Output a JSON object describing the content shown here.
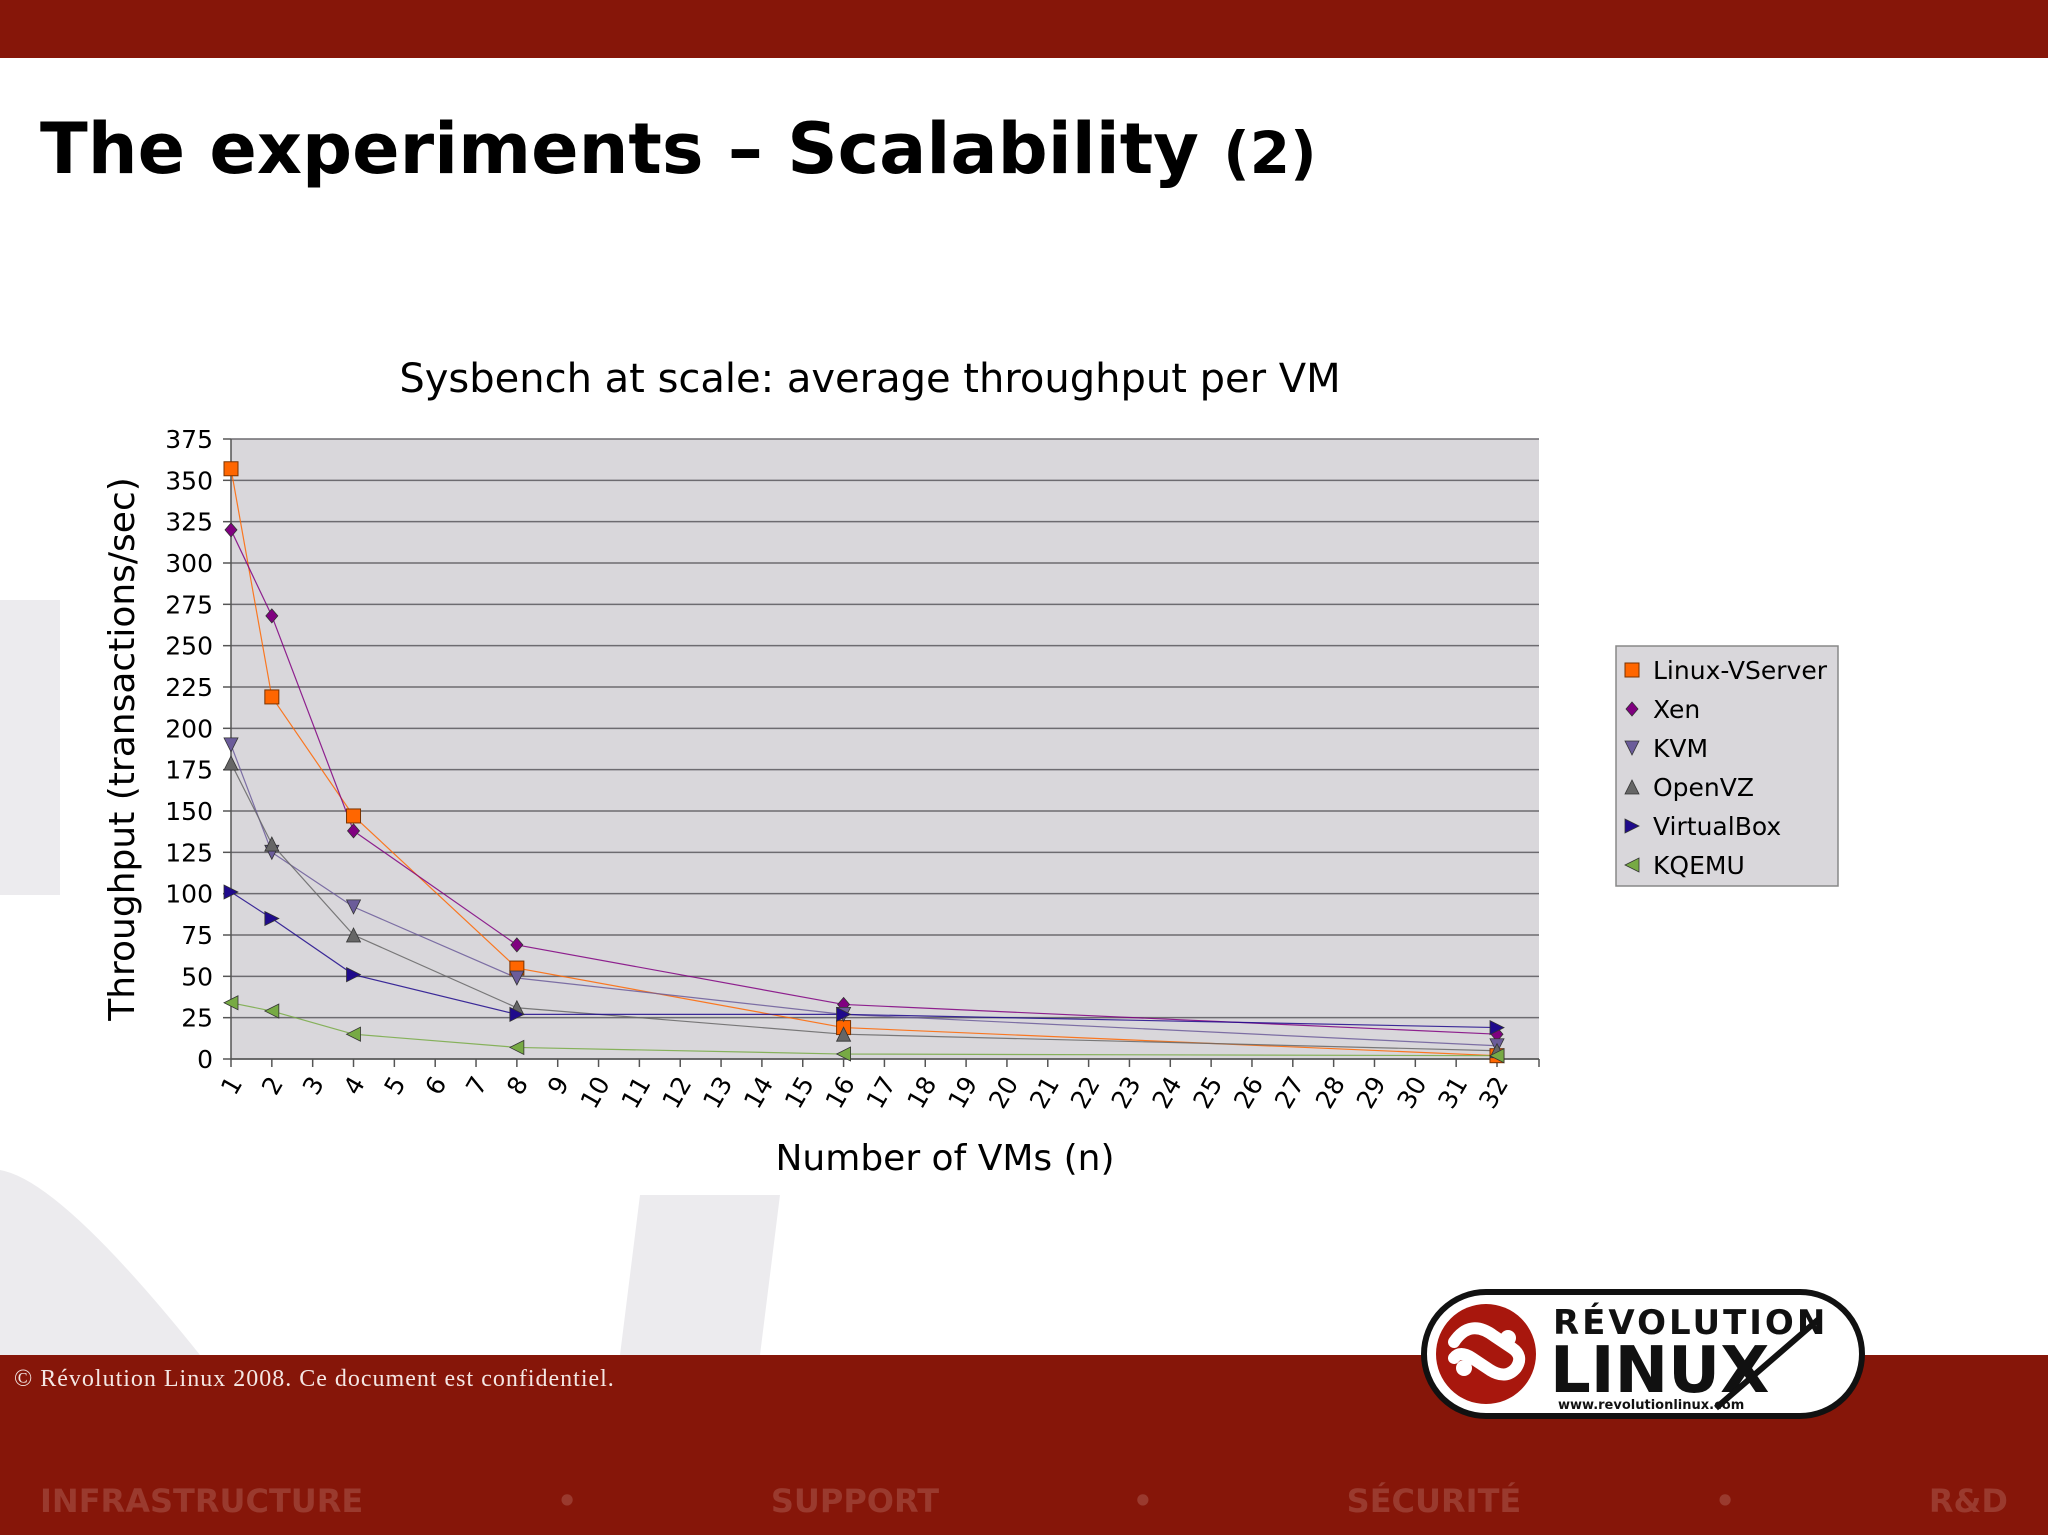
{
  "slide": {
    "title_main": "The experiments – Scalability",
    "title_suffix": "(2)"
  },
  "footer": {
    "copyright": "© Révolution Linux 2008. Ce document est confidentiel.",
    "tagline": [
      "INFRASTRUCTURE",
      "•",
      "SUPPORT",
      "•",
      "SÉCURITÉ",
      "•",
      "R&D"
    ]
  },
  "logo": {
    "word1": "RÉVOLUTION",
    "word2": "LINUX",
    "url": "www.revolutionlinux.com"
  },
  "colors": {
    "brand_red": "#861609",
    "plot_bg": "#d9d7db"
  },
  "chart_data": {
    "type": "line",
    "title": "Sysbench at scale: average throughput per VM",
    "xlabel": "Number of VMs (n)",
    "ylabel": "Throughput (transactions/sec)",
    "x_ticks": [
      "1",
      "2",
      "3",
      "4",
      "5",
      "6",
      "7",
      "8",
      "9",
      "10",
      "11",
      "12",
      "13",
      "14",
      "15",
      "16",
      "17",
      "18",
      "19",
      "20",
      "21",
      "22",
      "23",
      "24",
      "25",
      "26",
      "27",
      "28",
      "29",
      "30",
      "31",
      "32"
    ],
    "y_ticks": [
      0,
      25,
      50,
      75,
      100,
      125,
      150,
      175,
      200,
      225,
      250,
      275,
      300,
      325,
      350,
      375
    ],
    "ylim": [
      0,
      375
    ],
    "grid": true,
    "legend_position": "right",
    "x": [
      1,
      2,
      4,
      8,
      16,
      32
    ],
    "series": [
      {
        "name": "Linux-VServer",
        "values": [
          357,
          219,
          147,
          55,
          19,
          2
        ],
        "color": "#ff6600",
        "marker": "square"
      },
      {
        "name": "Xen",
        "values": [
          320,
          268,
          138,
          69,
          33,
          15
        ],
        "color": "#800080",
        "marker": "diamond"
      },
      {
        "name": "KVM",
        "values": [
          190,
          125,
          92,
          49,
          27,
          8
        ],
        "color": "#6b5c9a",
        "marker": "tri-down"
      },
      {
        "name": "OpenVZ",
        "values": [
          179,
          130,
          75,
          31,
          15,
          5
        ],
        "color": "#666666",
        "marker": "tri-up"
      },
      {
        "name": "VirtualBox",
        "values": [
          101,
          85,
          51,
          27,
          27,
          19
        ],
        "color": "#1f0a8c",
        "marker": "tri-right"
      },
      {
        "name": "KQEMU",
        "values": [
          34,
          29,
          15,
          7,
          3,
          2
        ],
        "color": "#77aa44",
        "marker": "tri-left"
      }
    ]
  }
}
